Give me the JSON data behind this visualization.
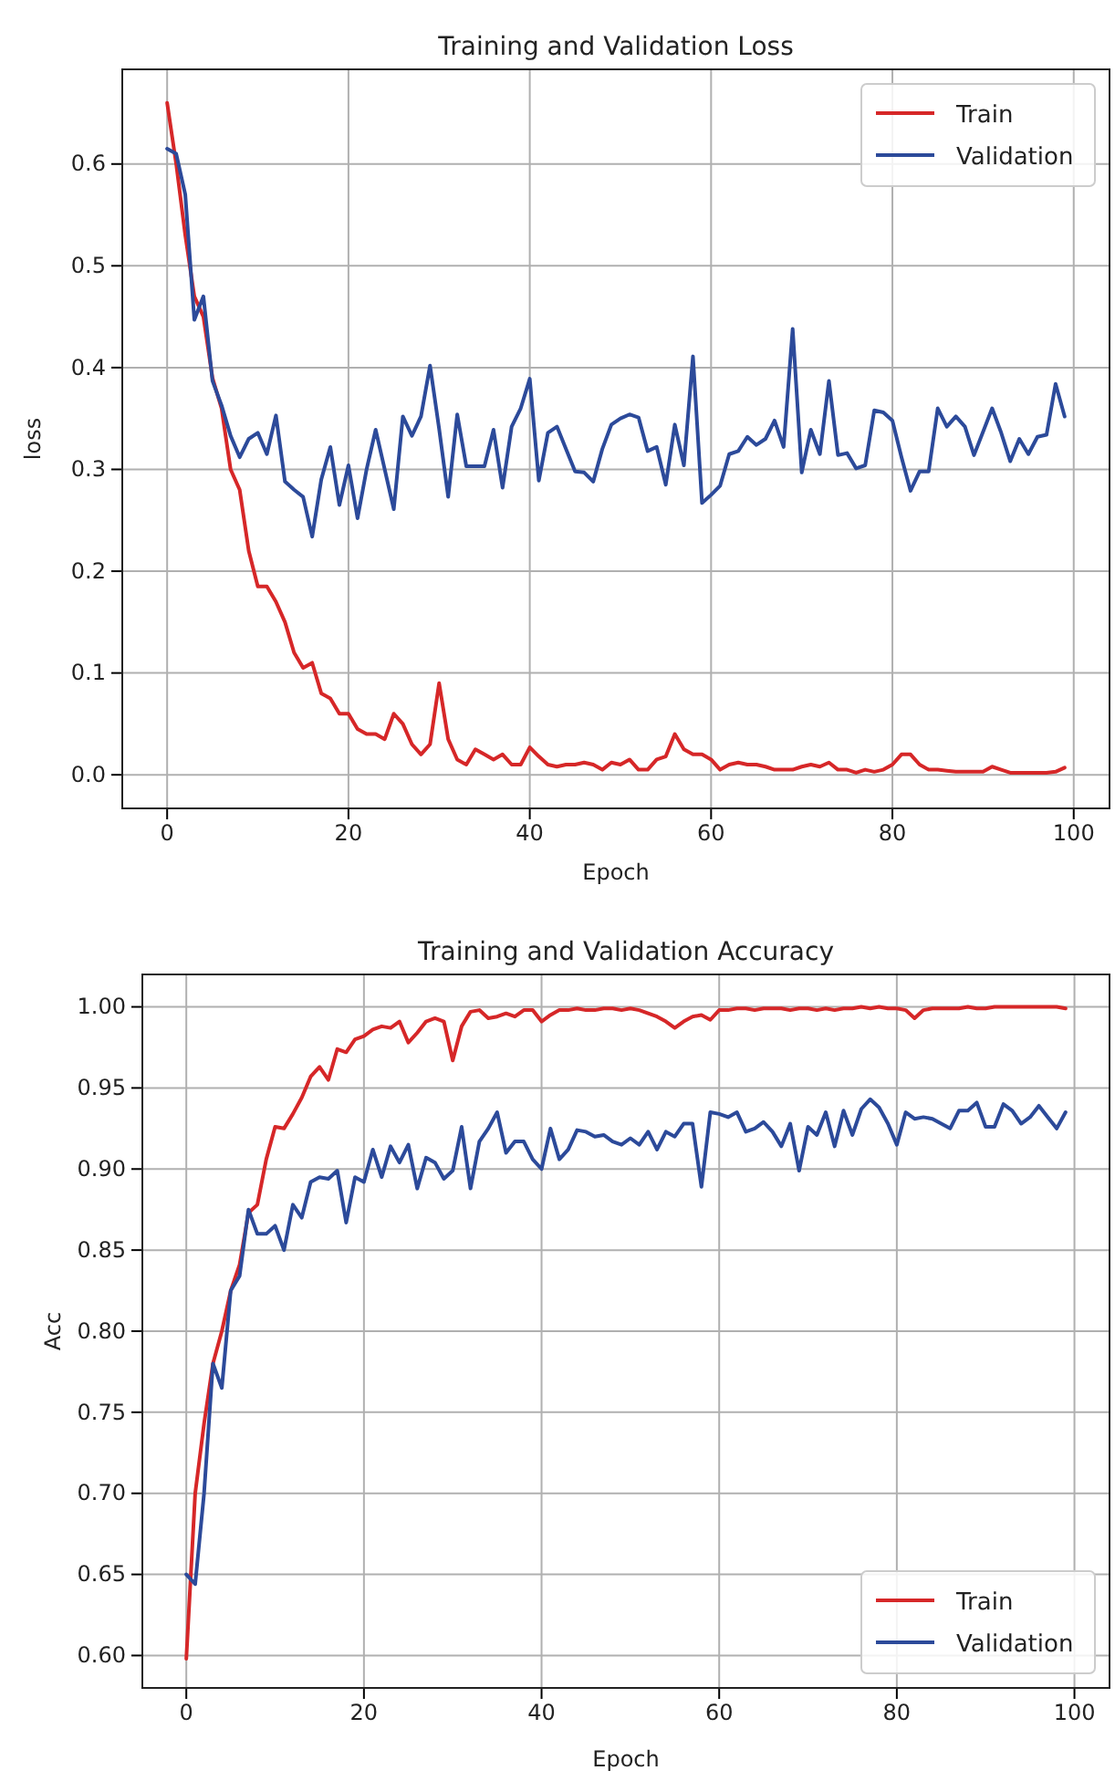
{
  "chart_data": [
    {
      "type": "line",
      "title": "Training and Validation Loss",
      "xlabel": "Epoch",
      "ylabel": "loss",
      "x": [
        0,
        1,
        2,
        3,
        4,
        5,
        6,
        7,
        8,
        9,
        10,
        11,
        12,
        13,
        14,
        15,
        16,
        17,
        18,
        19,
        20,
        21,
        22,
        23,
        24,
        25,
        26,
        27,
        28,
        29,
        30,
        31,
        32,
        33,
        34,
        35,
        36,
        37,
        38,
        39,
        40,
        41,
        42,
        43,
        44,
        45,
        46,
        47,
        48,
        49,
        50,
        51,
        52,
        53,
        54,
        55,
        56,
        57,
        58,
        59,
        60,
        61,
        62,
        63,
        64,
        65,
        66,
        67,
        68,
        69,
        70,
        71,
        72,
        73,
        74,
        75,
        76,
        77,
        78,
        79,
        80,
        81,
        82,
        83,
        84,
        85,
        86,
        87,
        88,
        89,
        90,
        91,
        92,
        93,
        94,
        95,
        96,
        97,
        98,
        99
      ],
      "series": [
        {
          "name": "Train",
          "color": "#d62728",
          "values": [
            0.66,
            0.6,
            0.53,
            0.47,
            0.45,
            0.39,
            0.36,
            0.3,
            0.28,
            0.22,
            0.185,
            0.185,
            0.17,
            0.15,
            0.12,
            0.105,
            0.11,
            0.08,
            0.075,
            0.06,
            0.06,
            0.045,
            0.04,
            0.04,
            0.035,
            0.06,
            0.05,
            0.03,
            0.02,
            0.03,
            0.09,
            0.035,
            0.015,
            0.01,
            0.025,
            0.02,
            0.015,
            0.02,
            0.01,
            0.01,
            0.027,
            0.018,
            0.01,
            0.008,
            0.01,
            0.01,
            0.012,
            0.01,
            0.005,
            0.012,
            0.01,
            0.015,
            0.005,
            0.005,
            0.015,
            0.018,
            0.04,
            0.025,
            0.02,
            0.02,
            0.015,
            0.005,
            0.01,
            0.012,
            0.01,
            0.01,
            0.008,
            0.005,
            0.005,
            0.005,
            0.008,
            0.01,
            0.008,
            0.012,
            0.005,
            0.005,
            0.002,
            0.005,
            0.003,
            0.005,
            0.01,
            0.02,
            0.02,
            0.01,
            0.005,
            0.005,
            0.004,
            0.003,
            0.003,
            0.003,
            0.003,
            0.008,
            0.005,
            0.002,
            0.002,
            0.002,
            0.002,
            0.002,
            0.003,
            0.007
          ]
        },
        {
          "name": "Validation",
          "color": "#2c4a9a",
          "x": [
            0,
            1,
            2,
            3,
            4,
            5,
            6,
            7,
            8,
            9,
            10,
            11,
            12,
            13,
            14,
            15,
            16,
            17,
            18,
            19,
            20,
            21,
            22,
            23,
            24,
            25,
            26,
            27,
            28,
            29,
            30,
            31,
            32,
            33,
            34,
            35,
            36,
            37,
            38,
            39,
            40,
            41,
            42,
            43,
            44,
            45,
            46,
            47,
            48,
            49,
            50,
            51,
            52,
            53,
            54,
            55,
            56,
            57,
            58,
            59,
            60,
            61,
            62,
            63,
            64,
            65,
            66,
            67,
            68,
            69,
            70,
            71,
            72,
            73,
            74,
            75,
            76,
            77,
            78,
            79,
            80,
            81,
            82,
            83,
            84,
            85,
            86,
            87,
            88,
            89,
            90,
            91,
            92,
            93,
            94,
            95,
            96,
            97,
            98,
            99
          ],
          "values": [
            0.615,
            0.61,
            0.57,
            0.447,
            0.47,
            0.387,
            0.363,
            0.333,
            0.312,
            0.33,
            0.336,
            0.315,
            0.353,
            0.288,
            0.28,
            0.273,
            0.234,
            0.29,
            0.322,
            0.265,
            0.304,
            0.252,
            0.3,
            0.339,
            0.3,
            0.261,
            0.352,
            0.333,
            0.352,
            0.402,
            0.34,
            0.273,
            0.354,
            0.303,
            0.303,
            0.303,
            0.339,
            0.282,
            0.342,
            0.36,
            0.389,
            0.289,
            0.336,
            0.342,
            0.32,
            0.298,
            0.297,
            0.288,
            0.32,
            0.344,
            0.35,
            0.354,
            0.351,
            0.318,
            0.322,
            0.285,
            0.344,
            0.304,
            0.411,
            0.267,
            0.275,
            0.284,
            0.315,
            0.318,
            0.332,
            0.324,
            0.33,
            0.348,
            0.322,
            0.438,
            0.297,
            0.339,
            0.315,
            0.387,
            0.314,
            0.316,
            0.301,
            0.304,
            0.358,
            0.356,
            0.348,
            0.312,
            0.279,
            0.298,
            0.298,
            0.36,
            0.342,
            0.352,
            0.342,
            0.314,
            0.337,
            0.36,
            0.336,
            0.308,
            0.33,
            0.315,
            0.332,
            0.334,
            0.384,
            0.352
          ]
        }
      ],
      "xlim": [
        -4.95,
        103.95
      ],
      "xticks": [
        0,
        20,
        40,
        60,
        80,
        100
      ],
      "ylim": [
        -0.033,
        0.693
      ],
      "yticks": [
        {
          "value": 0,
          "label": "0.0"
        },
        {
          "value": 0.1,
          "label": "0.1"
        },
        {
          "value": 0.2,
          "label": "0.2"
        },
        {
          "value": 0.3,
          "label": "0.3"
        },
        {
          "value": 0.4,
          "label": "0.4"
        },
        {
          "value": 0.5,
          "label": "0.5"
        },
        {
          "value": 0.6,
          "label": "0.6"
        }
      ],
      "grid": true,
      "legend": "top right"
    },
    {
      "type": "line",
      "title": "Training and Validation Accuracy",
      "xlabel": "Epoch",
      "ylabel": "Acc",
      "x": [
        0,
        1,
        2,
        3,
        4,
        5,
        6,
        7,
        8,
        9,
        10,
        11,
        12,
        13,
        14,
        15,
        16,
        17,
        18,
        19,
        20,
        21,
        22,
        23,
        24,
        25,
        26,
        27,
        28,
        29,
        30,
        31,
        32,
        33,
        34,
        35,
        36,
        37,
        38,
        39,
        40,
        41,
        42,
        43,
        44,
        45,
        46,
        47,
        48,
        49,
        50,
        51,
        52,
        53,
        54,
        55,
        56,
        57,
        58,
        59,
        60,
        61,
        62,
        63,
        64,
        65,
        66,
        67,
        68,
        69,
        70,
        71,
        72,
        73,
        74,
        75,
        76,
        77,
        78,
        79,
        80,
        81,
        82,
        83,
        84,
        85,
        86,
        87,
        88,
        89,
        90,
        91,
        92,
        93,
        94,
        95,
        96,
        97,
        98,
        99
      ],
      "series": [
        {
          "name": "Train",
          "color": "#d62728",
          "values": [
            0.598,
            0.7,
            0.743,
            0.78,
            0.8,
            0.825,
            0.841,
            0.873,
            0.878,
            0.906,
            0.926,
            0.925,
            0.934,
            0.944,
            0.957,
            0.963,
            0.955,
            0.974,
            0.972,
            0.98,
            0.982,
            0.986,
            0.988,
            0.987,
            0.991,
            0.978,
            0.984,
            0.991,
            0.993,
            0.991,
            0.967,
            0.988,
            0.997,
            0.998,
            0.993,
            0.994,
            0.996,
            0.994,
            0.998,
            0.998,
            0.991,
            0.995,
            0.998,
            0.998,
            0.999,
            0.998,
            0.998,
            0.999,
            0.999,
            0.998,
            0.999,
            0.998,
            0.996,
            0.994,
            0.991,
            0.987,
            0.991,
            0.994,
            0.995,
            0.992,
            0.998,
            0.998,
            0.999,
            0.999,
            0.998,
            0.999,
            0.999,
            0.999,
            0.998,
            0.999,
            0.999,
            0.998,
            0.999,
            0.998,
            0.999,
            0.999,
            1.0,
            0.999,
            1.0,
            0.999,
            0.999,
            0.998,
            0.993,
            0.998,
            0.999,
            0.999,
            0.999,
            0.999,
            1.0,
            0.999,
            0.999,
            1.0,
            1.0,
            1.0,
            1.0,
            1.0,
            1.0,
            1.0,
            1.0,
            0.999
          ]
        },
        {
          "name": "Validation",
          "color": "#2c4a9a",
          "values": [
            0.65,
            0.644,
            0.7,
            0.78,
            0.765,
            0.825,
            0.834,
            0.875,
            0.86,
            0.86,
            0.865,
            0.85,
            0.878,
            0.87,
            0.892,
            0.895,
            0.894,
            0.899,
            0.867,
            0.895,
            0.892,
            0.912,
            0.895,
            0.914,
            0.904,
            0.915,
            0.888,
            0.907,
            0.904,
            0.894,
            0.899,
            0.926,
            0.888,
            0.917,
            0.925,
            0.935,
            0.91,
            0.917,
            0.917,
            0.906,
            0.9,
            0.925,
            0.906,
            0.912,
            0.924,
            0.923,
            0.92,
            0.921,
            0.917,
            0.915,
            0.919,
            0.915,
            0.923,
            0.912,
            0.923,
            0.92,
            0.928,
            0.928,
            0.889,
            0.935,
            0.934,
            0.932,
            0.935,
            0.923,
            0.925,
            0.929,
            0.923,
            0.914,
            0.928,
            0.899,
            0.926,
            0.921,
            0.935,
            0.914,
            0.936,
            0.921,
            0.937,
            0.943,
            0.938,
            0.928,
            0.915,
            0.935,
            0.931,
            0.932,
            0.931,
            0.928,
            0.925,
            0.936,
            0.936,
            0.941,
            0.926,
            0.926,
            0.94,
            0.936,
            0.928,
            0.932,
            0.939,
            0.932,
            0.925,
            0.935
          ]
        }
      ],
      "xlim": [
        -4.95,
        103.95
      ],
      "xticks": [
        0,
        20,
        40,
        60,
        80,
        100
      ],
      "ylim": [
        0.58,
        1.02
      ],
      "yticks": [
        {
          "value": 0.6,
          "label": "0.60"
        },
        {
          "value": 0.65,
          "label": "0.65"
        },
        {
          "value": 0.7,
          "label": "0.70"
        },
        {
          "value": 0.75,
          "label": "0.75"
        },
        {
          "value": 0.8,
          "label": "0.80"
        },
        {
          "value": 0.85,
          "label": "0.85"
        },
        {
          "value": 0.9,
          "label": "0.90"
        },
        {
          "value": 0.95,
          "label": "0.95"
        },
        {
          "value": 1.0,
          "label": "1.00"
        }
      ],
      "grid": true,
      "legend": "bottom right"
    }
  ]
}
